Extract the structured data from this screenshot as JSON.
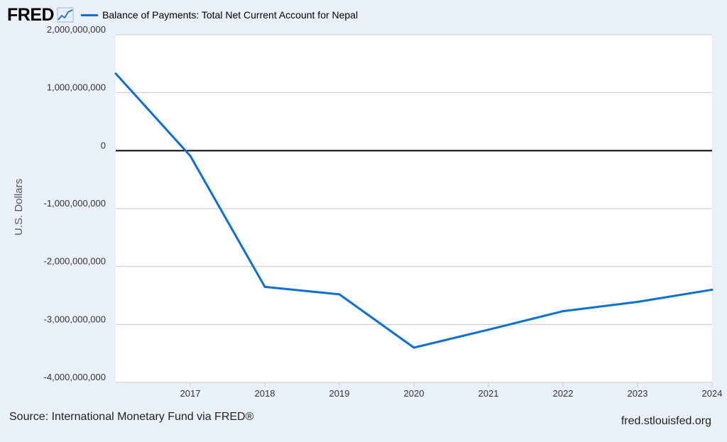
{
  "header": {
    "logo_text": "FRED",
    "logo_icon": "line-chart-icon",
    "legend_label": "Balance of Payments: Total Net Current Account for Nepal"
  },
  "colors": {
    "series": "#0c6fd8",
    "background": "#eaf0f8",
    "plot_background": "#ffffff",
    "grid": "#c8c8c8",
    "zero_line": "#000000"
  },
  "chart_data": {
    "type": "line",
    "title": "",
    "xlabel": "",
    "ylabel": "U.S. Dollars",
    "ylim": [
      -4000000000,
      2000000000
    ],
    "xlim": [
      2016,
      2024
    ],
    "y_ticks": [
      2000000000,
      1000000000,
      0,
      -1000000000,
      -2000000000,
      -3000000000,
      -4000000000
    ],
    "y_tick_labels": [
      "2,000,000,000",
      "1,000,000,000",
      "0",
      "-1,000,000,000",
      "-2,000,000,000",
      "-3,000,000,000",
      "-4,000,000,000"
    ],
    "x_tick_labels": [
      "2017",
      "2018",
      "2019",
      "2020",
      "2021",
      "2022",
      "2023",
      "2024"
    ],
    "grid": true,
    "series": [
      {
        "name": "Balance of Payments: Total Net Current Account for Nepal",
        "x": [
          2016,
          2017,
          2018,
          2019,
          2020,
          2021,
          2022,
          2023,
          2024
        ],
        "values": [
          1330000000,
          -90000000,
          -2350000000,
          -2480000000,
          -3400000000,
          -3090000000,
          -2770000000,
          -2610000000,
          -2400000000
        ]
      }
    ]
  },
  "footer": {
    "source": "Source: International Monetary Fund via FRED®",
    "site": "fred.stlouisfed.org"
  }
}
